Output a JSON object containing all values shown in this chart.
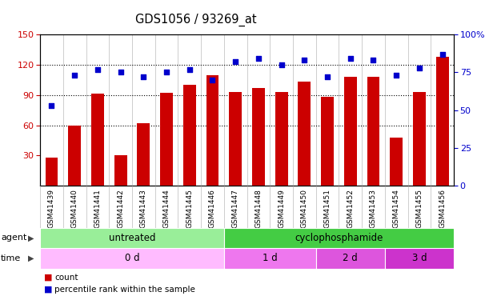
{
  "title": "GDS1056 / 93269_at",
  "samples": [
    "GSM41439",
    "GSM41440",
    "GSM41441",
    "GSM41442",
    "GSM41443",
    "GSM41444",
    "GSM41445",
    "GSM41446",
    "GSM41447",
    "GSM41448",
    "GSM41449",
    "GSM41450",
    "GSM41451",
    "GSM41452",
    "GSM41453",
    "GSM41454",
    "GSM41455",
    "GSM41456"
  ],
  "counts": [
    28,
    60,
    91,
    30,
    62,
    92,
    100,
    110,
    93,
    97,
    93,
    103,
    88,
    108,
    108,
    48,
    93,
    128
  ],
  "percentiles": [
    53,
    73,
    77,
    75,
    72,
    75,
    77,
    70,
    82,
    84,
    80,
    83,
    72,
    84,
    83,
    73,
    78,
    87
  ],
  "bar_color": "#cc0000",
  "dot_color": "#0000cc",
  "ylim_left": [
    0,
    150
  ],
  "ylim_right": [
    0,
    100
  ],
  "yticks_left": [
    30,
    60,
    90,
    120,
    150
  ],
  "yticks_right": [
    0,
    25,
    50,
    75,
    100
  ],
  "ytick_labels_right": [
    "0",
    "25",
    "50",
    "75",
    "100%"
  ],
  "hlines": [
    60,
    90,
    120
  ],
  "agent_groups": [
    {
      "label": "untreated",
      "start": 0,
      "end": 8,
      "color": "#99ee99"
    },
    {
      "label": "cyclophosphamide",
      "start": 8,
      "end": 18,
      "color": "#44cc44"
    }
  ],
  "time_groups": [
    {
      "label": "0 d",
      "start": 0,
      "end": 8,
      "color": "#ffbbff"
    },
    {
      "label": "1 d",
      "start": 8,
      "end": 12,
      "color": "#ee77ee"
    },
    {
      "label": "2 d",
      "start": 12,
      "end": 15,
      "color": "#dd55dd"
    },
    {
      "label": "3 d",
      "start": 15,
      "end": 18,
      "color": "#cc33cc"
    }
  ],
  "legend_items": [
    {
      "label": "count",
      "color": "#cc0000"
    },
    {
      "label": "percentile rank within the sample",
      "color": "#0000cc"
    }
  ]
}
